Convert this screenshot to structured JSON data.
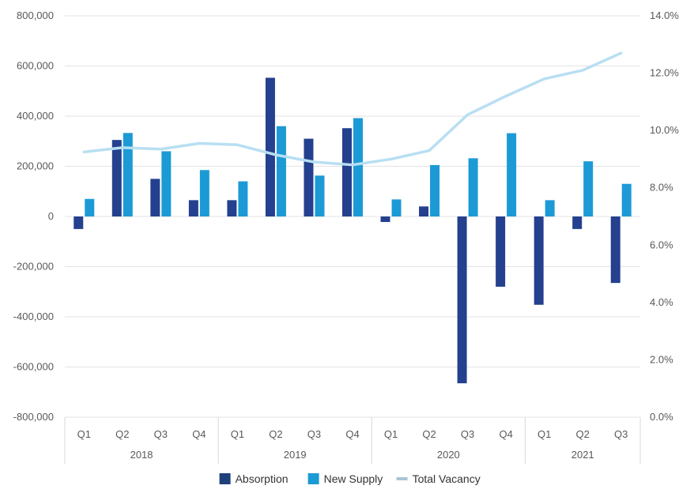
{
  "chart_data": {
    "type": "bar",
    "categories": [
      "Q1",
      "Q2",
      "Q3",
      "Q4",
      "Q1",
      "Q2",
      "Q3",
      "Q4",
      "Q1",
      "Q2",
      "Q3",
      "Q4",
      "Q1",
      "Q2",
      "Q3"
    ],
    "groups": [
      {
        "label": "2018",
        "count": 4
      },
      {
        "label": "2019",
        "count": 4
      },
      {
        "label": "2020",
        "count": 4
      },
      {
        "label": "2021",
        "count": 3
      }
    ],
    "series": [
      {
        "name": "Absorption",
        "kind": "bar",
        "axis": "left",
        "color": "#24408e",
        "values": [
          -50000,
          305000,
          150000,
          65000,
          65000,
          553000,
          310000,
          352000,
          -22000,
          40000,
          -665000,
          -280000,
          -352000,
          -50000,
          -265000
        ]
      },
      {
        "name": "New Supply",
        "kind": "bar",
        "axis": "left",
        "color": "#1c9ad6",
        "values": [
          70000,
          333000,
          260000,
          185000,
          140000,
          360000,
          163000,
          392000,
          68000,
          205000,
          232000,
          332000,
          65000,
          220000,
          130000
        ]
      },
      {
        "name": "Total Vacancy",
        "kind": "line",
        "axis": "right",
        "color": "#b8dff2",
        "values": [
          9.25,
          9.4,
          9.35,
          9.55,
          9.5,
          9.15,
          8.9,
          8.8,
          9.0,
          9.3,
          10.55,
          11.2,
          11.8,
          12.1,
          12.7
        ]
      }
    ],
    "left_axis": {
      "min": -800000,
      "max": 800000,
      "ticks": [
        800000,
        600000,
        400000,
        200000,
        0,
        -200000,
        -400000,
        -600000,
        -800000
      ],
      "tick_labels": [
        "800,000",
        "600,000",
        "400,000",
        "200,000",
        "0",
        "-200,000",
        "-400,000",
        "-600,000",
        "-800,000"
      ]
    },
    "right_axis": {
      "min": 0,
      "max": 14,
      "ticks": [
        14,
        12,
        10,
        8,
        6,
        4,
        2,
        0
      ],
      "tick_labels": [
        "14.0%",
        "12.0%",
        "10.0%",
        "8.0%",
        "6.0%",
        "4.0%",
        "2.0%",
        "0.0%"
      ]
    },
    "grid": true,
    "legend_position": "bottom",
    "title": "",
    "xlabel": "",
    "ylabel": ""
  }
}
